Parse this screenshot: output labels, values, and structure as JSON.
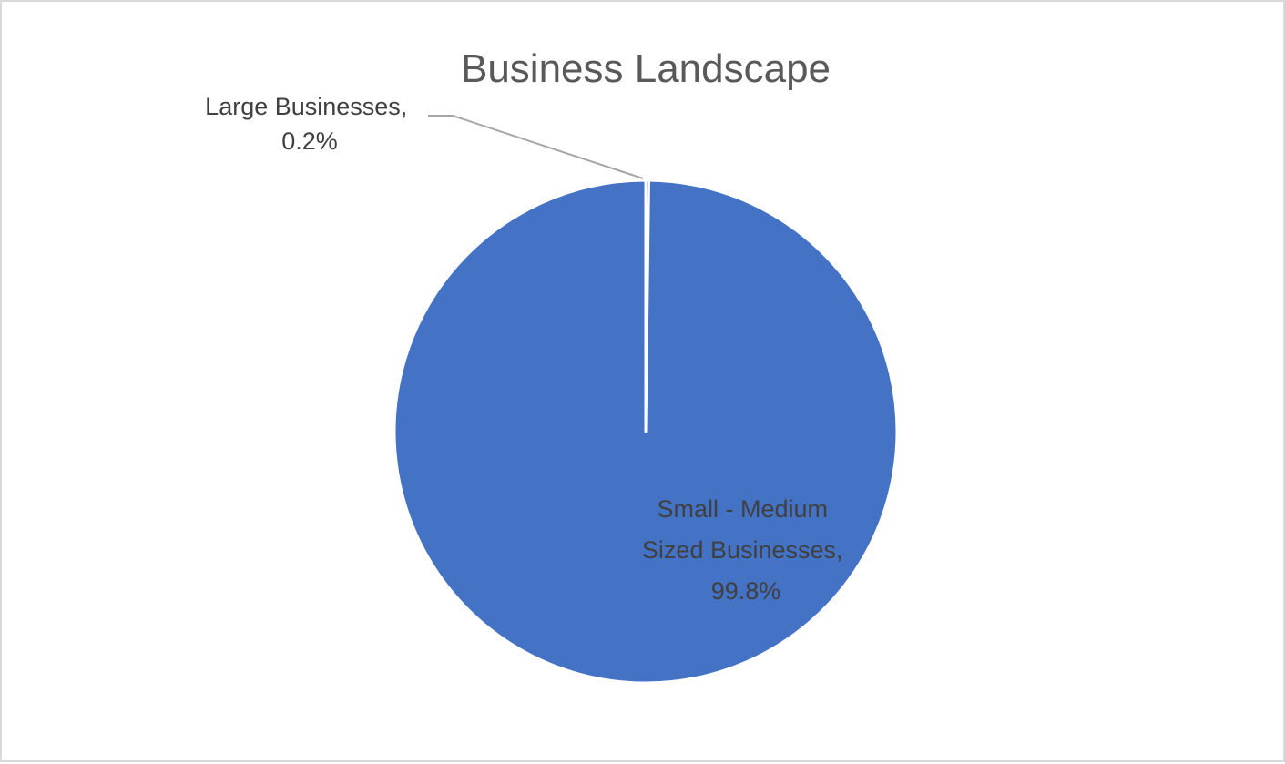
{
  "chart_data": {
    "type": "pie",
    "title": "Business Landscape",
    "slices": [
      {
        "name": "Large Businesses",
        "value": 0.2,
        "label_lines": [
          "Large Businesses,",
          "0.2%"
        ],
        "color": "#4472C4"
      },
      {
        "name": "Small - Medium Sized Businesses",
        "value": 99.8,
        "label_lines": [
          "Small - Medium",
          "Sized Businesses,",
          "99.8%"
        ],
        "color": "#4472C4"
      }
    ],
    "legend": "none",
    "data_labels": "category-and-percent"
  }
}
